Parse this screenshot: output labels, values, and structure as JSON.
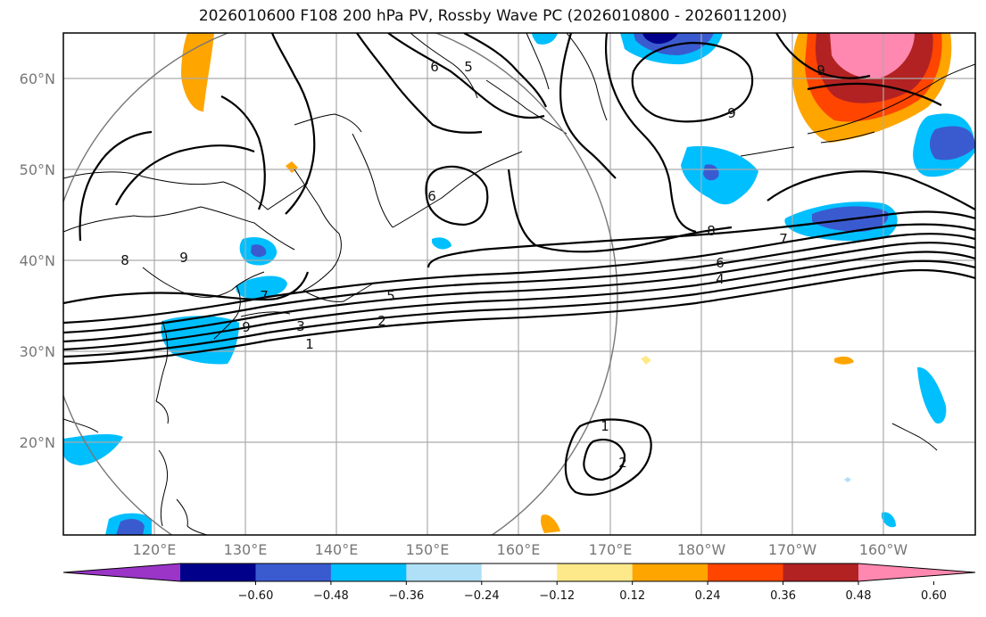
{
  "title": "2026010600 F108 200 hPa PV, Rossby Wave PC (2026010800 - 2026011200)",
  "lat_labels": [
    "60°N",
    "50°N",
    "40°N",
    "30°N",
    "20°N"
  ],
  "lon_labels": [
    "120°E",
    "130°E",
    "140°E",
    "150°E",
    "160°E",
    "170°E",
    "180°W",
    "170°W",
    "160°W"
  ],
  "contour_labels": [
    "1",
    "2",
    "3",
    "4",
    "5",
    "6",
    "7",
    "8",
    "9",
    "1",
    "2",
    "6",
    "5",
    "6",
    "8",
    "7",
    "9",
    "9",
    "9"
  ],
  "colorbar": {
    "colors": [
      "#9a35c8",
      "#00008b",
      "#3a5bd0",
      "#00bfff",
      "#b0e0f8",
      "#ffffff",
      "#fde98a",
      "#ffa500",
      "#ff4500",
      "#b22222",
      "#ff88b0"
    ],
    "tick_labels": [
      "−0.60",
      "−0.48",
      "−0.36",
      "−0.24",
      "−0.12",
      "0.12",
      "0.24",
      "0.36",
      "0.48",
      "0.60"
    ]
  }
}
